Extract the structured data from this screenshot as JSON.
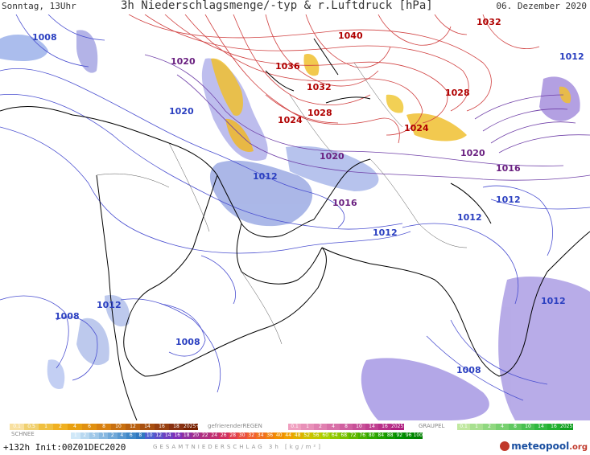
{
  "header": {
    "left": "Sonntag, 13Uhr",
    "center": "3h Niederschlagsmenge/-typ & r.Luftdruck [hPa]",
    "right": "06. Dezember 2020"
  },
  "isobars": {
    "blue": [
      "1008",
      "1020",
      "1016",
      "1012",
      "1020",
      "1016",
      "1012",
      "1012",
      "1012",
      "1012",
      "1012",
      "1008",
      "1008",
      "1012",
      "1008"
    ],
    "red": [
      "1040",
      "1036",
      "1032",
      "1028",
      "1024",
      "1028",
      "1024",
      "1032"
    ],
    "purple": [
      "1020",
      "1016",
      "1020",
      "1016",
      "1020"
    ]
  },
  "legend": {
    "rain_labels": [
      "0.1",
      "0.5",
      "1",
      "2",
      "4",
      "6",
      "8",
      "10",
      "12",
      "14",
      "16",
      "18",
      "2025+"
    ],
    "freezing_title": "gefrierenderREGEN",
    "freezing_labels": [
      "0.1",
      "1",
      "2",
      "4",
      "8",
      "10",
      "14",
      "16",
      "2025+"
    ],
    "graupel_title": "GRAUPEL",
    "graupel_labels": [
      "0.1",
      "1",
      "2",
      "4",
      "8",
      "10",
      "14",
      "16",
      "2025+"
    ],
    "snow_title": "SCHNEE",
    "snow_labels": [
      "1",
      "2",
      "5",
      "1",
      "2",
      "4",
      "6",
      "8",
      "10",
      "12",
      "14",
      "16",
      "18",
      "20",
      "22",
      "24",
      "26",
      "28",
      "30",
      "32",
      "34",
      "36",
      "40",
      "44",
      "48",
      "52",
      "56",
      "60",
      "64",
      "68",
      "72",
      "76",
      "80",
      "84",
      "88",
      "92",
      "96",
      "100"
    ],
    "total_title": "GESAMTNIEDERSCHLAG 3h [kg/m²]"
  },
  "footer": {
    "run": "+132h Init:00Z01DEC2020",
    "logo": "meteopool",
    "logo_tld": ".org"
  },
  "colors": {
    "isobar_blue": "#4a4fd0",
    "isobar_red": "#d04040",
    "coast": "#000000",
    "precip_blue": "#8fa8e8",
    "precip_purple": "#9a6ad0",
    "snow_yellow": "#f0c030"
  }
}
